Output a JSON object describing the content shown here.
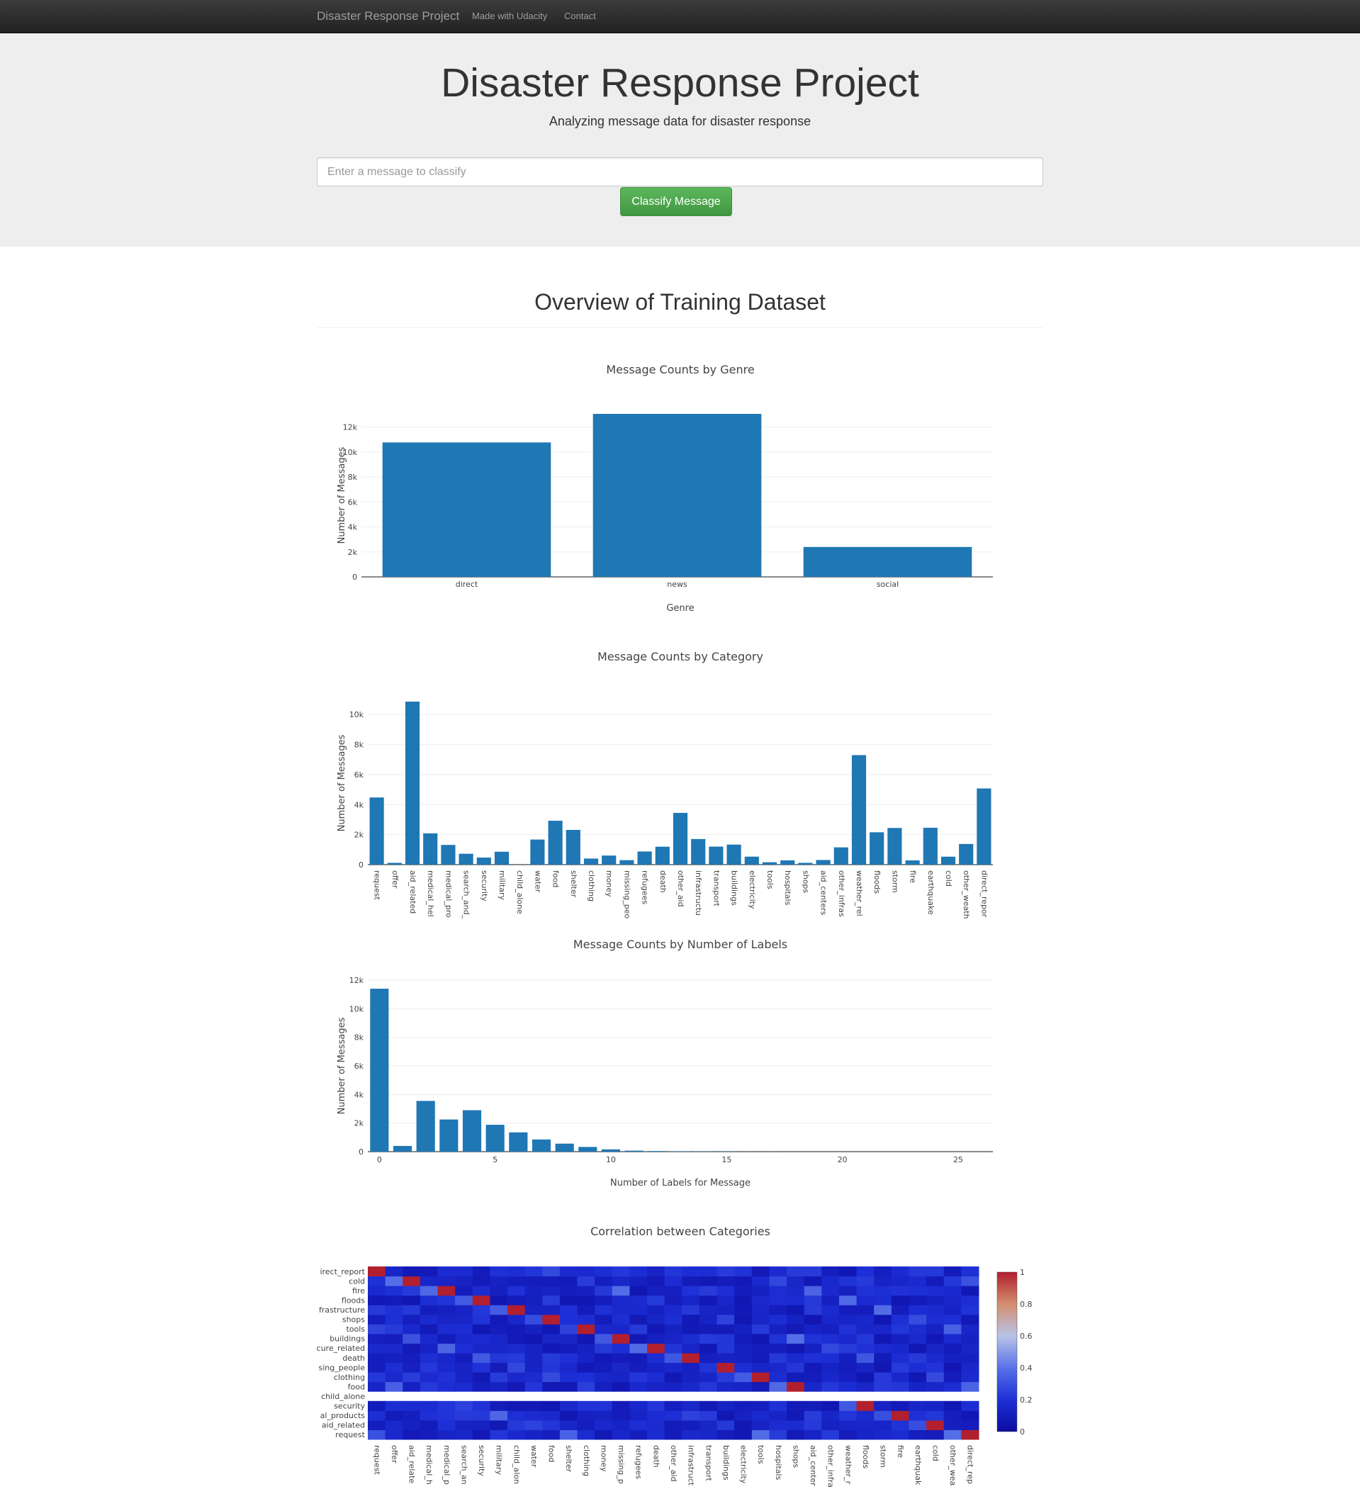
{
  "navbar": {
    "brand": "Disaster Response Project",
    "links": [
      "Made with Udacity",
      "Contact"
    ]
  },
  "header": {
    "title": "Disaster Response Project",
    "subtitle": "Analyzing message data for disaster response",
    "input_placeholder": "Enter a message to classify",
    "button_label": "Classify Message"
  },
  "overview": {
    "title": "Overview of Training Dataset"
  },
  "colors": {
    "bar": "#1f77b4",
    "button": "#5cb85c",
    "navbar": "#222222"
  },
  "chart_data": [
    {
      "type": "bar",
      "title": "Message Counts by Genre",
      "xlabel": "Genre",
      "ylabel": "Number of Messages",
      "categories": [
        "direct",
        "news",
        "social"
      ],
      "values": [
        10766,
        13054,
        2396
      ],
      "ylim": [
        0,
        13054
      ],
      "yticks": [
        0,
        2000,
        4000,
        6000,
        8000,
        10000,
        12000
      ],
      "ytick_labels": [
        "0",
        "2k",
        "4k",
        "6k",
        "8k",
        "10k",
        "12k"
      ],
      "grid": true
    },
    {
      "type": "bar",
      "title": "Message Counts by Category",
      "xlabel": "",
      "ylabel": "Number of Messages",
      "categories": [
        "request",
        "offer",
        "aid_related",
        "medical_hel",
        "medical_pro",
        "search_and_",
        "security",
        "military",
        "child_alone",
        "water",
        "food",
        "shelter",
        "clothing",
        "money",
        "missing_peo",
        "refugees",
        "death",
        "other_aid",
        "infrastructu",
        "transport",
        "buildings",
        "electricity",
        "tools",
        "hospitals",
        "shops",
        "aid_centers",
        "other_infras",
        "weather_rel",
        "floods",
        "storm",
        "fire",
        "earthquake",
        "cold",
        "other_weath",
        "direct_repor"
      ],
      "values": [
        4474,
        118,
        10860,
        2084,
        1313,
        724,
        471,
        860,
        0,
        1672,
        2923,
        2314,
        405,
        604,
        298,
        875,
        1194,
        3446,
        1705,
        1201,
        1333,
        532,
        159,
        283,
        120,
        309,
        1151,
        7297,
        2155,
        2443,
        282,
        2455,
        530,
        1376,
        5075
      ],
      "ylim": [
        0,
        10860
      ],
      "yticks": [
        0,
        2000,
        4000,
        6000,
        8000,
        10000
      ],
      "ytick_labels": [
        "0",
        "2k",
        "4k",
        "6k",
        "8k",
        "10k"
      ],
      "grid": true
    },
    {
      "type": "bar",
      "title": "Message Counts by Number of Labels",
      "xlabel": "Number of Labels for Message",
      "ylabel": "Number of Messages",
      "x": [
        0,
        1,
        2,
        3,
        4,
        5,
        6,
        7,
        8,
        9,
        10,
        11,
        12,
        13,
        14,
        15,
        16,
        17,
        18,
        19,
        20,
        21,
        22,
        23,
        24,
        25,
        26
      ],
      "values": [
        11400,
        400,
        3550,
        2250,
        2900,
        1880,
        1350,
        850,
        560,
        330,
        160,
        70,
        40,
        25,
        15,
        10,
        7,
        5,
        3,
        2,
        2,
        1,
        1,
        1,
        1,
        1,
        1
      ],
      "xticks": [
        0,
        5,
        10,
        15,
        20,
        25
      ],
      "ylim": [
        0,
        12000
      ],
      "yticks": [
        0,
        2000,
        4000,
        6000,
        8000,
        10000,
        12000
      ],
      "ytick_labels": [
        "0",
        "2k",
        "4k",
        "6k",
        "8k",
        "10k",
        "12k"
      ],
      "grid": true
    },
    {
      "type": "heatmap",
      "title": "Correlation between Categories",
      "x_labels": [
        "request",
        "offer",
        "aid_relate",
        "medical_h",
        "medical_p",
        "search_an",
        "security",
        "military",
        "child_alon",
        "water",
        "food",
        "shelter",
        "clothing",
        "money",
        "missing_p",
        "refugees",
        "death",
        "other_aid",
        "infrastruct",
        "transport",
        "buildings",
        "electricity",
        "tools",
        "hospitals",
        "shops",
        "aid_center",
        "other_infra",
        "weather_r",
        "floods",
        "storm",
        "fire",
        "earthquak",
        "cold",
        "other_wea",
        "direct_rep"
      ],
      "y_labels": [
        "request",
        "aid_related",
        "al_products",
        "security",
        "child_alone",
        "food",
        "clothing",
        "sing_people",
        "death",
        "cure_related",
        "buildings",
        "tools",
        "shops",
        "frastructure",
        "floods",
        "fire",
        "cold",
        "irect_report"
      ],
      "colorbar": {
        "ticks": [
          "0",
          "0.2",
          "0.4",
          "0.6",
          "0.8",
          "1"
        ],
        "zmin": 0,
        "zmax": 1
      },
      "colorscale": [
        "#0c0ca2",
        "#1d2fd6",
        "#5872e8",
        "#b9c3e8",
        "#d58e6e",
        "#b21f2e"
      ],
      "note_missing": "child_alone"
    }
  ]
}
